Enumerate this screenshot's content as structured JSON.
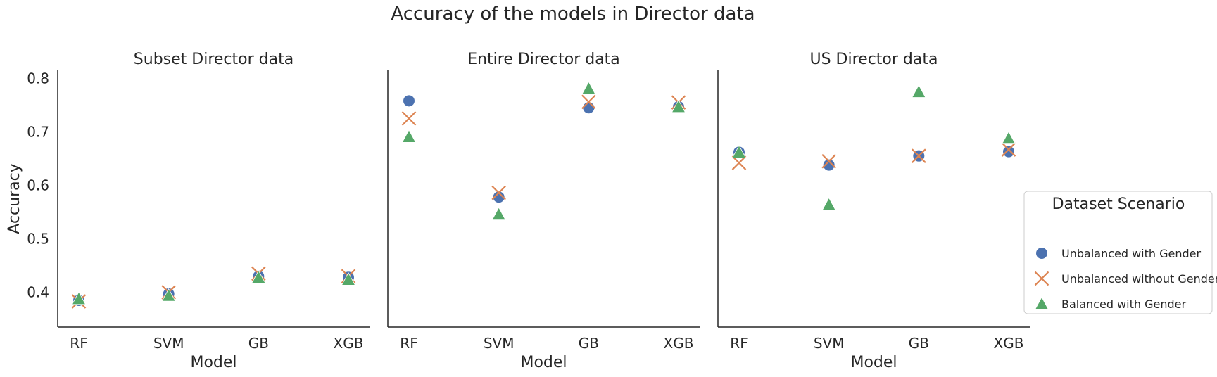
{
  "title": "Accuracy of the models in Director data",
  "colors": {
    "Unbalanced with Gender": "#4c72b0",
    "Unbalanced without Gender": "#dd8452",
    "Balanced with Gender": "#55a868"
  },
  "legend": {
    "title": "Dataset Scenario",
    "placement": "right",
    "items": [
      {
        "label": "Unbalanced with Gender",
        "marker": "circle"
      },
      {
        "label": "Unbalanced without Gender",
        "marker": "x"
      },
      {
        "label": "Balanced with Gender",
        "marker": "triangle"
      }
    ]
  },
  "chart_data": [
    {
      "type": "scatter",
      "title": "Subset Director data",
      "xlabel": "Model",
      "ylabel": "Accuracy",
      "categories": [
        "RF",
        "SVM",
        "GB",
        "XGB"
      ],
      "ylim": [
        0.335,
        0.815
      ],
      "yticks": [
        "0.4",
        "0.5",
        "0.6",
        "0.7",
        "0.8"
      ],
      "series": [
        {
          "name": "Unbalanced with Gender",
          "marker": "circle",
          "values": [
            0.385,
            0.397,
            0.43,
            0.428
          ]
        },
        {
          "name": "Unbalanced without Gender",
          "marker": "x",
          "values": [
            0.383,
            0.4,
            0.435,
            0.43
          ]
        },
        {
          "name": "Balanced with Gender",
          "marker": "triangle",
          "values": [
            0.388,
            0.394,
            0.428,
            0.424
          ]
        }
      ]
    },
    {
      "type": "scatter",
      "title": "Entire Director data",
      "xlabel": "Model",
      "ylabel": "",
      "categories": [
        "RF",
        "SVM",
        "GB",
        "XGB"
      ],
      "ylim": [
        0.335,
        0.815
      ],
      "yticks": [],
      "series": [
        {
          "name": "Unbalanced with Gender",
          "marker": "circle",
          "values": [
            0.758,
            0.578,
            0.745,
            0.747
          ]
        },
        {
          "name": "Unbalanced without Gender",
          "marker": "x",
          "values": [
            0.725,
            0.586,
            0.756,
            0.755
          ]
        },
        {
          "name": "Balanced with Gender",
          "marker": "triangle",
          "values": [
            0.691,
            0.546,
            0.781,
            0.747
          ]
        }
      ]
    },
    {
      "type": "scatter",
      "title": "US Director data",
      "xlabel": "Model",
      "ylabel": "",
      "categories": [
        "RF",
        "SVM",
        "GB",
        "XGB"
      ],
      "ylim": [
        0.335,
        0.815
      ],
      "yticks": [],
      "series": [
        {
          "name": "Unbalanced with Gender",
          "marker": "circle",
          "values": [
            0.662,
            0.638,
            0.655,
            0.663
          ]
        },
        {
          "name": "Unbalanced without Gender",
          "marker": "x",
          "values": [
            0.642,
            0.645,
            0.655,
            0.667
          ]
        },
        {
          "name": "Balanced with Gender",
          "marker": "triangle",
          "values": [
            0.662,
            0.564,
            0.775,
            0.688
          ]
        }
      ]
    }
  ]
}
